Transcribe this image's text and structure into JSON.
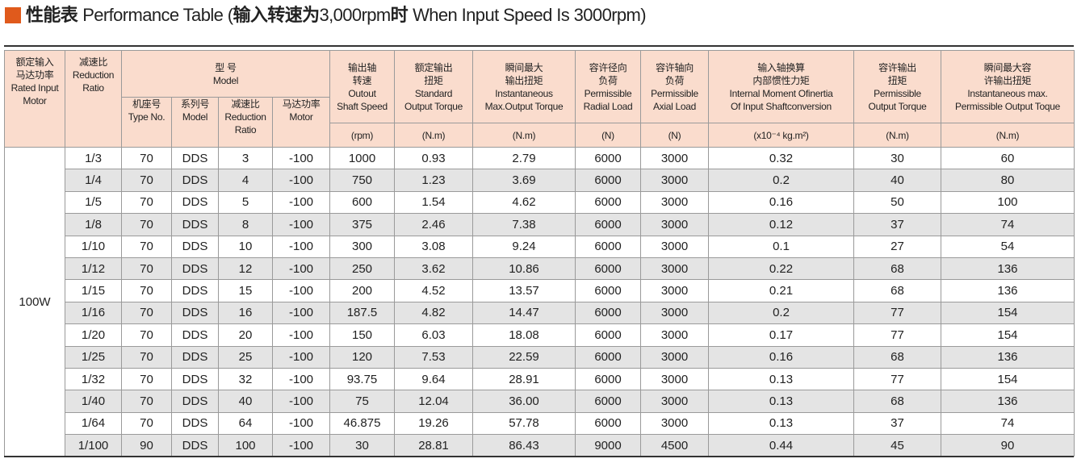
{
  "title": [
    "性能表",
    "Performance Table (",
    "输入转速为",
    "3,000rpm",
    "时",
    "When Input Speed Is 3000rpm)"
  ],
  "table": {
    "rated": [
      "额定输入",
      "马达功率",
      "Rated Input",
      "Motor"
    ],
    "ratio": [
      "减速比",
      "Reduction",
      "Ratio"
    ],
    "model": [
      "型 号",
      "Model"
    ],
    "model_sub": [
      [
        "机座号",
        "Type No."
      ],
      [
        "系列号",
        "Model"
      ],
      [
        "减速比",
        "Reduction",
        "Ratio"
      ],
      [
        "马达功率",
        "Motor"
      ]
    ],
    "specs": [
      {
        "lines": [
          "输出轴",
          "转速",
          "Outout",
          "Shaft Speed"
        ],
        "unit": "(rpm)"
      },
      {
        "lines": [
          "额定输出",
          "扭矩",
          "Standard",
          "Output Torque"
        ],
        "unit": "(N.m)"
      },
      {
        "lines": [
          "瞬间最大",
          "输出扭矩",
          "Instantaneous",
          "Max.Output Torque"
        ],
        "unit": "(N.m)"
      },
      {
        "lines": [
          "容许径向",
          "负荷",
          "Permissible",
          "Radial Load"
        ],
        "unit": "(N)"
      },
      {
        "lines": [
          "容许轴向",
          "负荷",
          "Permissible",
          "Axial Load"
        ],
        "unit": "(N)"
      },
      {
        "lines": [
          "输入轴换算",
          "内部惯性力矩",
          "Internal Moment Ofinertia",
          "Of Input Shaftconversion"
        ],
        "unit": "(x10⁻⁴ kg.m²)"
      },
      {
        "lines": [
          "容许输出",
          "扭矩",
          "Permissible",
          "Output Torque"
        ],
        "unit": "(N.m)"
      },
      {
        "lines": [
          "瞬间最大容",
          "许输出扭矩",
          "Instantaneous max.",
          "Permissible Output Toque"
        ],
        "unit": "(N.m)"
      }
    ],
    "group": "100W",
    "rows": [
      [
        "1/3",
        "70",
        "DDS",
        "3",
        "-100",
        "1000",
        "0.93",
        "2.79",
        "6000",
        "3000",
        "0.32",
        "30",
        "60"
      ],
      [
        "1/4",
        "70",
        "DDS",
        "4",
        "-100",
        "750",
        "1.23",
        "3.69",
        "6000",
        "3000",
        "0.2",
        "40",
        "80"
      ],
      [
        "1/5",
        "70",
        "DDS",
        "5",
        "-100",
        "600",
        "1.54",
        "4.62",
        "6000",
        "3000",
        "0.16",
        "50",
        "100"
      ],
      [
        "1/8",
        "70",
        "DDS",
        "8",
        "-100",
        "375",
        "2.46",
        "7.38",
        "6000",
        "3000",
        "0.12",
        "37",
        "74"
      ],
      [
        "1/10",
        "70",
        "DDS",
        "10",
        "-100",
        "300",
        "3.08",
        "9.24",
        "6000",
        "3000",
        "0.1",
        "27",
        "54"
      ],
      [
        "1/12",
        "70",
        "DDS",
        "12",
        "-100",
        "250",
        "3.62",
        "10.86",
        "6000",
        "3000",
        "0.22",
        "68",
        "136"
      ],
      [
        "1/15",
        "70",
        "DDS",
        "15",
        "-100",
        "200",
        "4.52",
        "13.57",
        "6000",
        "3000",
        "0.21",
        "68",
        "136"
      ],
      [
        "1/16",
        "70",
        "DDS",
        "16",
        "-100",
        "187.5",
        "4.82",
        "14.47",
        "6000",
        "3000",
        "0.2",
        "77",
        "154"
      ],
      [
        "1/20",
        "70",
        "DDS",
        "20",
        "-100",
        "150",
        "6.03",
        "18.08",
        "6000",
        "3000",
        "0.17",
        "77",
        "154"
      ],
      [
        "1/25",
        "70",
        "DDS",
        "25",
        "-100",
        "120",
        "7.53",
        "22.59",
        "6000",
        "3000",
        "0.16",
        "68",
        "136"
      ],
      [
        "1/32",
        "70",
        "DDS",
        "32",
        "-100",
        "93.75",
        "9.64",
        "28.91",
        "6000",
        "3000",
        "0.13",
        "77",
        "154"
      ],
      [
        "1/40",
        "70",
        "DDS",
        "40",
        "-100",
        "75",
        "12.04",
        "36.00",
        "6000",
        "3000",
        "0.13",
        "68",
        "136"
      ],
      [
        "1/64",
        "70",
        "DDS",
        "64",
        "-100",
        "46.875",
        "19.26",
        "57.78",
        "6000",
        "3000",
        "0.13",
        "37",
        "74"
      ],
      [
        "1/100",
        "90",
        "DDS",
        "100",
        "-100",
        "30",
        "28.81",
        "86.43",
        "9000",
        "4500",
        "0.44",
        "45",
        "90"
      ]
    ]
  }
}
